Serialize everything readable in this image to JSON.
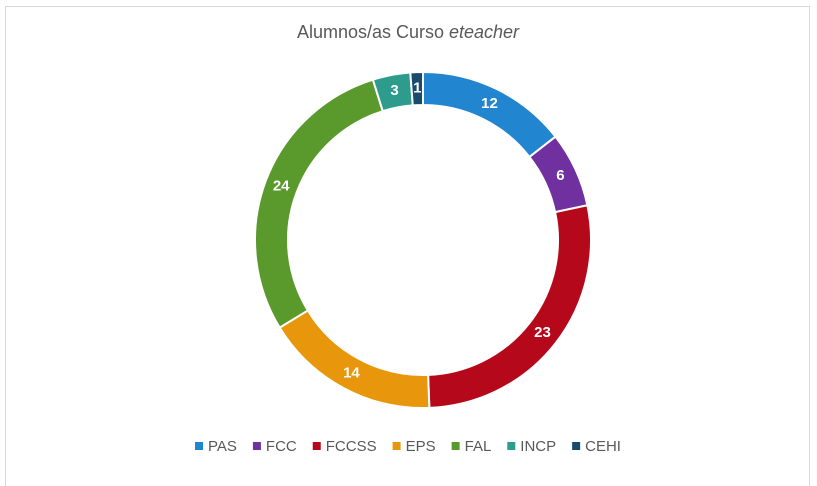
{
  "chart_data": {
    "type": "donut",
    "title": {
      "text": "Alumnos/as Curso",
      "italic": "eteacher"
    },
    "categories": [
      "PAS",
      "FCC",
      "FCCSS",
      "EPS",
      "FAL",
      "INCP",
      "CEHI"
    ],
    "values": [
      12,
      6,
      23,
      14,
      24,
      3,
      1
    ],
    "colors": [
      "#2185d0",
      "#7030a0",
      "#b5091b",
      "#e8960c",
      "#5a9a2c",
      "#2e9c8c",
      "#1a4a6e"
    ],
    "legend": "bottom"
  }
}
